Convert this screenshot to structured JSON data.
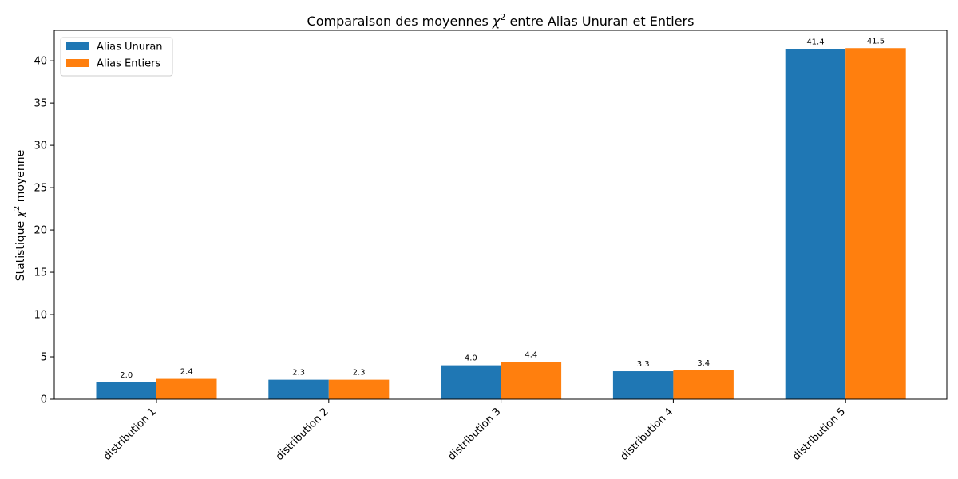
{
  "chart_data": {
    "type": "bar",
    "title": "Comparaison des moyennes χ² entre Alias Unuran et Entiers",
    "title_parts": {
      "before": "Comparaison des moyennes ",
      "symbol": "χ",
      "sup": "2",
      "after": " entre Alias Unuran et Entiers"
    },
    "xlabel": "",
    "ylabel": "Statistique χ² moyenne",
    "ylabel_parts": {
      "before": "Statistique ",
      "symbol": "χ",
      "sup": "2",
      "after": " moyenne"
    },
    "categories": [
      "distribution 1",
      "distribution 2",
      "distribution 3",
      "distribution 4",
      "distribution 5"
    ],
    "series": [
      {
        "name": "Alias Unuran",
        "color": "#1f77b4",
        "values": [
          2.0,
          2.3,
          4.0,
          3.3,
          41.4
        ],
        "labels": [
          "2.0",
          "2.3",
          "4.0",
          "3.3",
          "41.4"
        ]
      },
      {
        "name": "Alias Entiers",
        "color": "#ff7f0e",
        "values": [
          2.4,
          2.3,
          4.4,
          3.4,
          41.5
        ],
        "labels": [
          "2.4",
          "2.3",
          "4.4",
          "3.4",
          "41.5"
        ]
      }
    ],
    "ylim": [
      0,
      43.6
    ],
    "yticks": [
      0,
      5,
      10,
      15,
      20,
      25,
      30,
      35,
      40
    ],
    "grid": false,
    "legend_position": "top-left"
  }
}
